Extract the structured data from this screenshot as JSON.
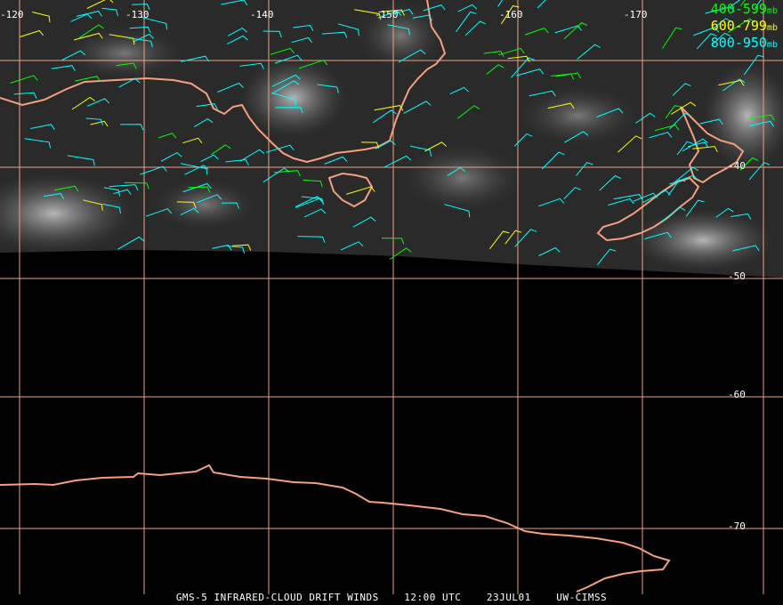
{
  "colors": {
    "background": "#000000",
    "grid": "#f0a080",
    "coast": "#f5a080",
    "legend_400_599": "#00ff00",
    "legend_600_799": "#ffff00",
    "legend_800_950": "#00ffff"
  },
  "longitude_labels": [
    "-120",
    "-130",
    "-140",
    "-150",
    "-160",
    "-170"
  ],
  "latitude_labels": [
    "-40",
    "-50",
    "-60",
    "-70"
  ],
  "legend": {
    "items": [
      {
        "range": "400-599",
        "unit": "mb"
      },
      {
        "range": "600-799",
        "unit": "mb"
      },
      {
        "range": "800-950",
        "unit": "mb"
      }
    ]
  },
  "footer": {
    "product": "GMS-5 INFRARED-CLOUD DRIFT WINDS",
    "time": "12:00 UTC",
    "date": "23JUL01",
    "source": "UW-CIMSS"
  }
}
